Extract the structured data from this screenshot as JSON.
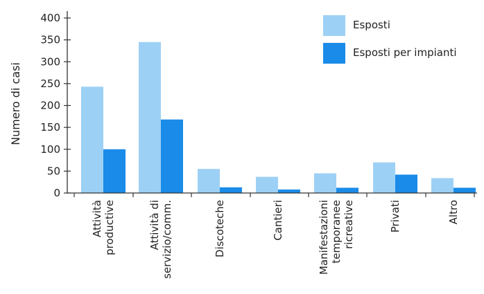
{
  "chart_data": {
    "type": "bar",
    "ylabel": "Numero di casi",
    "ylim": [
      0,
      400
    ],
    "yticks": [
      0,
      50,
      100,
      150,
      200,
      250,
      300,
      350,
      400
    ],
    "categories": [
      [
        "Attività",
        "productive"
      ],
      [
        "Attività di",
        "servizio/comm."
      ],
      [
        "Discoteche"
      ],
      [
        "Cantieri"
      ],
      [
        "Manifestazioni",
        "temporanee",
        "ricreative"
      ],
      [
        "Privati"
      ],
      [
        "Altro"
      ]
    ],
    "series": [
      {
        "name": "Esposti",
        "color": "#9dd0f5",
        "values": [
          243,
          345,
          55,
          37,
          45,
          70,
          34
        ]
      },
      {
        "name": "Esposti per impianti",
        "color": "#1a8be8",
        "values": [
          100,
          168,
          13,
          8,
          12,
          42,
          12
        ]
      }
    ],
    "legend_position": "top-right",
    "grid": false
  }
}
